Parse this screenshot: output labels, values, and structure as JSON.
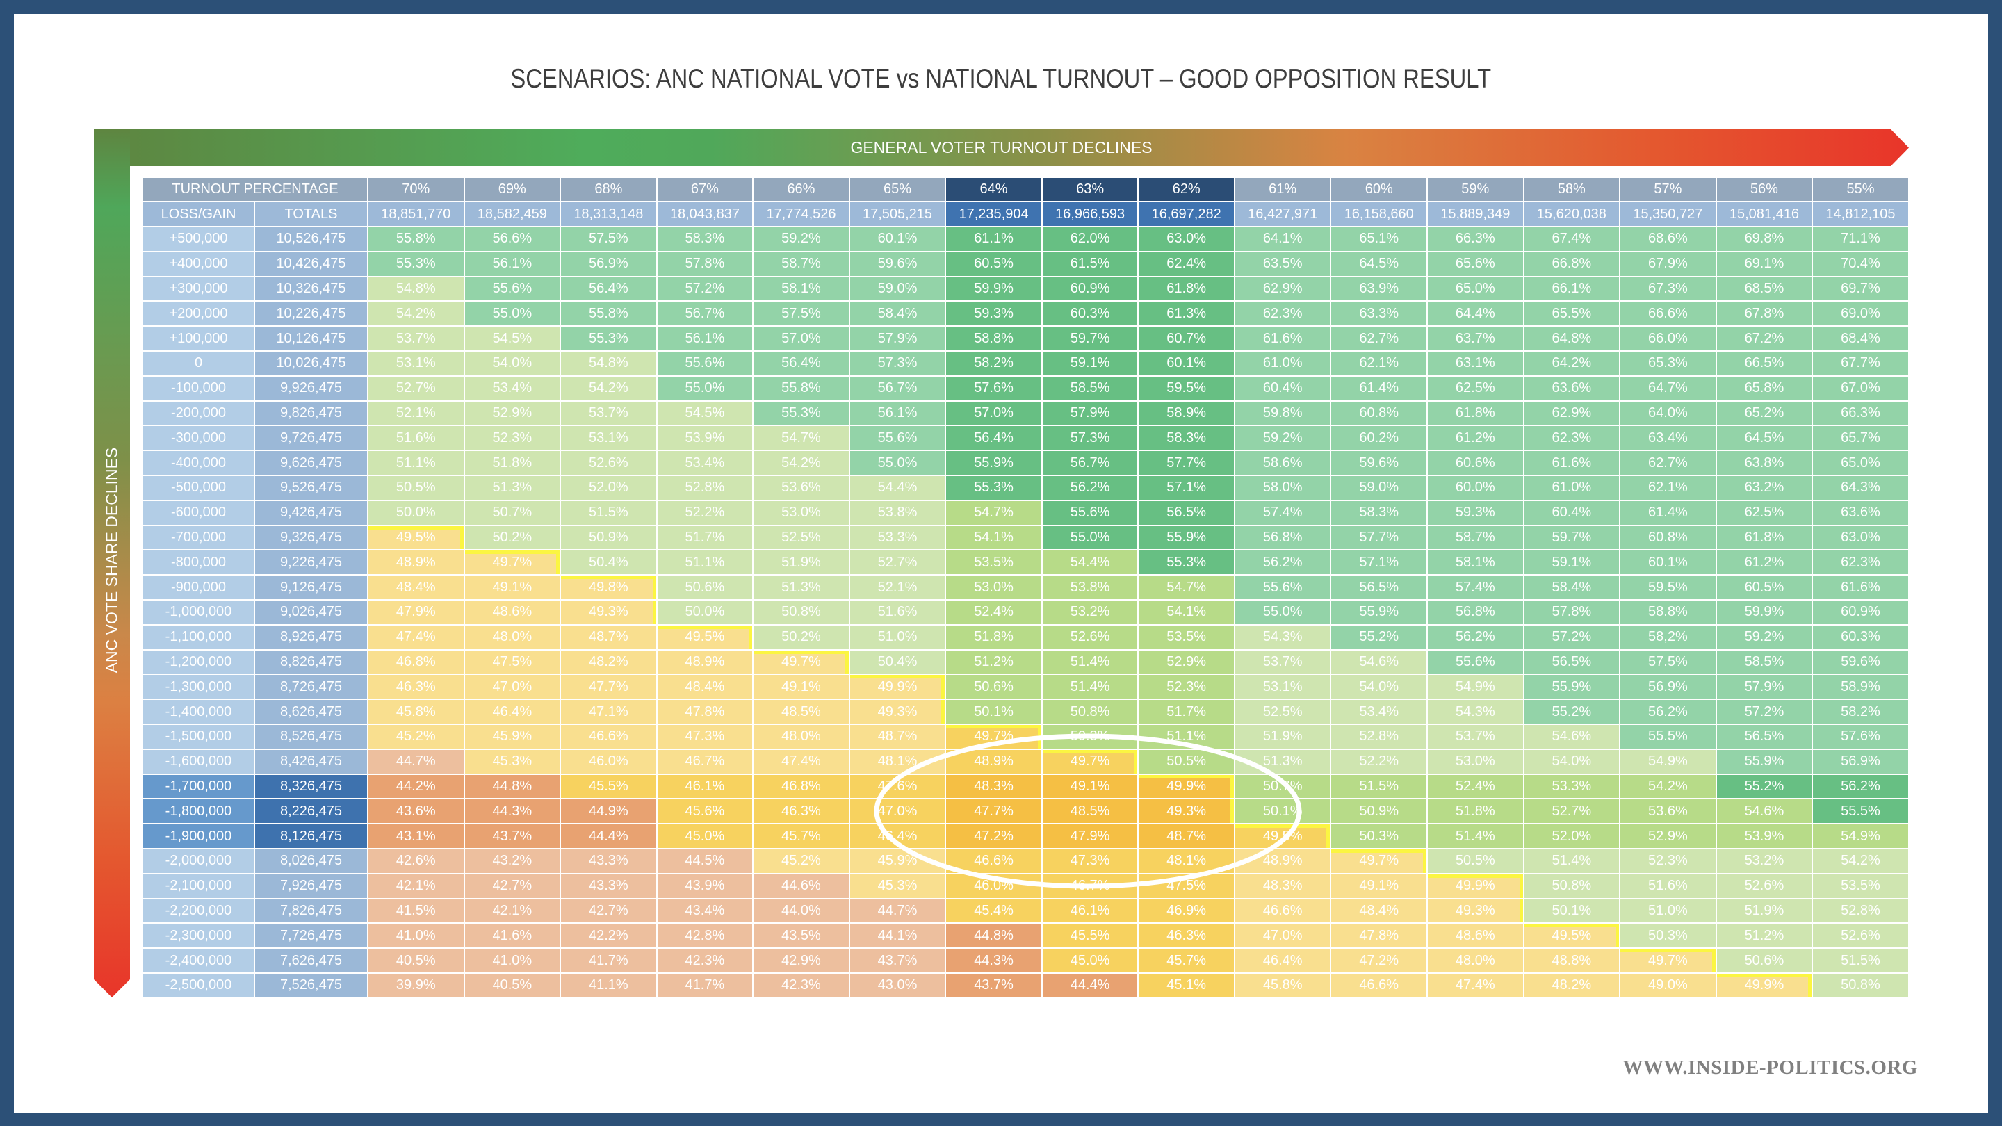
{
  "title": "SCENARIOS: ANC NATIONAL VOTE vs NATIONAL TURNOUT – GOOD OPPOSITION RESULT",
  "top_arrow_label": "GENERAL VOTER TURNOUT DECLINES",
  "side_arrow_label": "ANC VOTE SHARE DECLINES",
  "footer_url": "WWW.INSIDE-POLITICS.ORG",
  "colors": {
    "mint": "#93d3a8",
    "dark_green": "#67bf83",
    "pale_green": "#cfe5b0",
    "yellow_green": "#b7db88",
    "pale_yellow": "#f9df8f",
    "gold": "#f7d25f",
    "amber": "#f5bf44",
    "salmon": "#edbf9e",
    "orange": "#e8a271",
    "majority_line": "#fbf542",
    "ellipse": "#ffffff"
  },
  "chart_data": {
    "type": "table",
    "title": "SCENARIOS: ANC NATIONAL VOTE vs NATIONAL TURNOUT – GOOD OPPOSITION RESULT",
    "xlabel": "GENERAL VOTER TURNOUT DECLINES",
    "ylabel": "ANC VOTE SHARE DECLINES",
    "header_label": "TURNOUT PERCENTAGE",
    "loss_gain_label": "LOSS/GAIN",
    "totals_label": "TOTALS",
    "majority_threshold": 50,
    "highlight_columns": [
      "64%",
      "63%",
      "62%"
    ],
    "highlight_rows": [
      "-1,700,000",
      "-1,800,000",
      "-1,900,000"
    ],
    "circled_region": {
      "columns": [
        "65%",
        "64%",
        "63%",
        "62%",
        "61%"
      ],
      "rows": [
        "-1,600,000",
        "-2,100,000"
      ]
    },
    "turnouts": [
      "70%",
      "69%",
      "68%",
      "67%",
      "66%",
      "65%",
      "64%",
      "63%",
      "62%",
      "61%",
      "60%",
      "59%",
      "58%",
      "57%",
      "56%",
      "55%"
    ],
    "turnout_totals": [
      "18,851,770",
      "18,582,459",
      "18,313,148",
      "18,043,837",
      "17,774,526",
      "17,505,215",
      "17,235,904",
      "16,966,593",
      "16,697,282",
      "16,427,971",
      "16,158,660",
      "15,889,349",
      "15,620,038",
      "15,350,727",
      "15,081,416",
      "14,812,105"
    ],
    "rows": [
      {
        "change": "+500,000",
        "total": "10,526,475",
        "values": [
          "55.8%",
          "56.6%",
          "57.5%",
          "58.3%",
          "59.2%",
          "60.1%",
          "61.1%",
          "62.0%",
          "63.0%",
          "64.1%",
          "65.1%",
          "66.3%",
          "67.4%",
          "68.6%",
          "69.8%",
          "71.1%"
        ]
      },
      {
        "change": "+400,000",
        "total": "10,426,475",
        "values": [
          "55.3%",
          "56.1%",
          "56.9%",
          "57.8%",
          "58.7%",
          "59.6%",
          "60.5%",
          "61.5%",
          "62.4%",
          "63.5%",
          "64.5%",
          "65.6%",
          "66.8%",
          "67.9%",
          "69.1%",
          "70.4%"
        ]
      },
      {
        "change": "+300,000",
        "total": "10,326,475",
        "values": [
          "54.8%",
          "55.6%",
          "56.4%",
          "57.2%",
          "58.1%",
          "59.0%",
          "59.9%",
          "60.9%",
          "61.8%",
          "62.9%",
          "63.9%",
          "65.0%",
          "66.1%",
          "67.3%",
          "68.5%",
          "69.7%"
        ]
      },
      {
        "change": "+200,000",
        "total": "10,226,475",
        "values": [
          "54.2%",
          "55.0%",
          "55.8%",
          "56.7%",
          "57.5%",
          "58.4%",
          "59.3%",
          "60.3%",
          "61.3%",
          "62.3%",
          "63.3%",
          "64.4%",
          "65.5%",
          "66.6%",
          "67.8%",
          "69.0%"
        ]
      },
      {
        "change": "+100,000",
        "total": "10,126,475",
        "values": [
          "53.7%",
          "54.5%",
          "55.3%",
          "56.1%",
          "57.0%",
          "57.9%",
          "58.8%",
          "59.7%",
          "60.7%",
          "61.6%",
          "62.7%",
          "63.7%",
          "64.8%",
          "66.0%",
          "67.2%",
          "68.4%"
        ]
      },
      {
        "change": "0",
        "total": "10,026,475",
        "values": [
          "53.1%",
          "54.0%",
          "54.8%",
          "55.6%",
          "56.4%",
          "57.3%",
          "58.2%",
          "59.1%",
          "60.1%",
          "61.0%",
          "62.1%",
          "63.1%",
          "64.2%",
          "65.3%",
          "66.5%",
          "67.7%"
        ]
      },
      {
        "change": "-100,000",
        "total": "9,926,475",
        "values": [
          "52.7%",
          "53.4%",
          "54.2%",
          "55.0%",
          "55.8%",
          "56.7%",
          "57.6%",
          "58.5%",
          "59.5%",
          "60.4%",
          "61.4%",
          "62.5%",
          "63.6%",
          "64.7%",
          "65.8%",
          "67.0%"
        ]
      },
      {
        "change": "-200,000",
        "total": "9,826,475",
        "values": [
          "52.1%",
          "52.9%",
          "53.7%",
          "54.5%",
          "55.3%",
          "56.1%",
          "57.0%",
          "57.9%",
          "58.9%",
          "59.8%",
          "60.8%",
          "61.8%",
          "62.9%",
          "64.0%",
          "65.2%",
          "66.3%"
        ]
      },
      {
        "change": "-300,000",
        "total": "9,726,475",
        "values": [
          "51.6%",
          "52.3%",
          "53.1%",
          "53.9%",
          "54.7%",
          "55.6%",
          "56.4%",
          "57.3%",
          "58.3%",
          "59.2%",
          "60.2%",
          "61.2%",
          "62.3%",
          "63.4%",
          "64.5%",
          "65.7%"
        ]
      },
      {
        "change": "-400,000",
        "total": "9,626,475",
        "values": [
          "51.1%",
          "51.8%",
          "52.6%",
          "53.4%",
          "54.2%",
          "55.0%",
          "55.9%",
          "56.7%",
          "57.7%",
          "58.6%",
          "59.6%",
          "60.6%",
          "61.6%",
          "62.7%",
          "63.8%",
          "65.0%"
        ]
      },
      {
        "change": "-500,000",
        "total": "9,526,475",
        "values": [
          "50.5%",
          "51.3%",
          "52.0%",
          "52.8%",
          "53.6%",
          "54.4%",
          "55.3%",
          "56.2%",
          "57.1%",
          "58.0%",
          "59.0%",
          "60.0%",
          "61.0%",
          "62.1%",
          "63.2%",
          "64.3%"
        ]
      },
      {
        "change": "-600,000",
        "total": "9,426,475",
        "values": [
          "50.0%",
          "50.7%",
          "51.5%",
          "52.2%",
          "53.0%",
          "53.8%",
          "54.7%",
          "55.6%",
          "56.5%",
          "57.4%",
          "58.3%",
          "59.3%",
          "60.4%",
          "61.4%",
          "62.5%",
          "63.6%"
        ]
      },
      {
        "change": "-700,000",
        "total": "9,326,475",
        "values": [
          "49.5%",
          "50.2%",
          "50.9%",
          "51.7%",
          "52.5%",
          "53.3%",
          "54.1%",
          "55.0%",
          "55.9%",
          "56.8%",
          "57.7%",
          "58.7%",
          "59.7%",
          "60.8%",
          "61.8%",
          "63.0%"
        ]
      },
      {
        "change": "-800,000",
        "total": "9,226,475",
        "values": [
          "48.9%",
          "49.7%",
          "50.4%",
          "51.1%",
          "51.9%",
          "52.7%",
          "53.5%",
          "54.4%",
          "55.3%",
          "56.2%",
          "57.1%",
          "58.1%",
          "59.1%",
          "60.1%",
          "61.2%",
          "62.3%"
        ]
      },
      {
        "change": "-900,000",
        "total": "9,126,475",
        "values": [
          "48.4%",
          "49.1%",
          "49.8%",
          "50.6%",
          "51.3%",
          "52.1%",
          "53.0%",
          "53.8%",
          "54.7%",
          "55.6%",
          "56.5%",
          "57.4%",
          "58.4%",
          "59.5%",
          "60.5%",
          "61.6%"
        ]
      },
      {
        "change": "-1,000,000",
        "total": "9,026,475",
        "values": [
          "47.9%",
          "48.6%",
          "49.3%",
          "50.0%",
          "50.8%",
          "51.6%",
          "52.4%",
          "53.2%",
          "54.1%",
          "55.0%",
          "55.9%",
          "56.8%",
          "57.8%",
          "58.8%",
          "59.9%",
          "60.9%"
        ]
      },
      {
        "change": "-1,100,000",
        "total": "8,926,475",
        "values": [
          "47.4%",
          "48.0%",
          "48.7%",
          "49.5%",
          "50.2%",
          "51.0%",
          "51.8%",
          "52.6%",
          "53.5%",
          "54.3%",
          "55.2%",
          "56.2%",
          "57.2%",
          "58,2%",
          "59.2%",
          "60.3%"
        ]
      },
      {
        "change": "-1,200,000",
        "total": "8,826,475",
        "values": [
          "46.8%",
          "47.5%",
          "48.2%",
          "48.9%",
          "49.7%",
          "50.4%",
          "51.2%",
          "51.4%",
          "52.9%",
          "53.7%",
          "54.6%",
          "55.6%",
          "56.5%",
          "57.5%",
          "58.5%",
          "59.6%"
        ]
      },
      {
        "change": "-1,300,000",
        "total": "8,726,475",
        "values": [
          "46.3%",
          "47.0%",
          "47.7%",
          "48.4%",
          "49.1%",
          "49.9%",
          "50.6%",
          "51.4%",
          "52.3%",
          "53.1%",
          "54.0%",
          "54.9%",
          "55.9%",
          "56.9%",
          "57.9%",
          "58.9%"
        ]
      },
      {
        "change": "-1,400,000",
        "total": "8,626,475",
        "values": [
          "45.8%",
          "46.4%",
          "47.1%",
          "47.8%",
          "48.5%",
          "49.3%",
          "50.1%",
          "50.8%",
          "51.7%",
          "52.5%",
          "53.4%",
          "54.3%",
          "55.2%",
          "56.2%",
          "57.2%",
          "58.2%"
        ]
      },
      {
        "change": "-1,500,000",
        "total": "8,526,475",
        "values": [
          "45.2%",
          "45.9%",
          "46.6%",
          "47.3%",
          "48.0%",
          "48.7%",
          "49.7%",
          "50.3%",
          "51.1%",
          "51.9%",
          "52.8%",
          "53.7%",
          "54.6%",
          "55.5%",
          "56.5%",
          "57.6%"
        ]
      },
      {
        "change": "-1,600,000",
        "total": "8,426,475",
        "values": [
          "44.7%",
          "45.3%",
          "46.0%",
          "46.7%",
          "47.4%",
          "48.1%",
          "48.9%",
          "49.7%",
          "50.5%",
          "51.3%",
          "52.2%",
          "53.0%",
          "54.0%",
          "54.9%",
          "55.9%",
          "56.9%"
        ]
      },
      {
        "change": "-1,700,000",
        "total": "8,326,475",
        "values": [
          "44.2%",
          "44.8%",
          "45.5%",
          "46.1%",
          "46.8%",
          "47.6%",
          "48.3%",
          "49.1%",
          "49.9%",
          "50.7%",
          "51.5%",
          "52.4%",
          "53.3%",
          "54.2%",
          "55.2%",
          "56.2%"
        ]
      },
      {
        "change": "-1,800,000",
        "total": "8,226,475",
        "values": [
          "43.6%",
          "44.3%",
          "44.9%",
          "45.6%",
          "46.3%",
          "47.0%",
          "47.7%",
          "48.5%",
          "49.3%",
          "50.1%",
          "50.9%",
          "51.8%",
          "52.7%",
          "53.6%",
          "54.6%",
          "55.5%"
        ]
      },
      {
        "change": "-1,900,000",
        "total": "8,126,475",
        "values": [
          "43.1%",
          "43.7%",
          "44.4%",
          "45.0%",
          "45.7%",
          "46.4%",
          "47.2%",
          "47.9%",
          "48.7%",
          "49.5%",
          "50.3%",
          "51.4%",
          "52.0%",
          "52.9%",
          "53.9%",
          "54.9%"
        ]
      },
      {
        "change": "-2,000,000",
        "total": "8,026,475",
        "values": [
          "42.6%",
          "43.2%",
          "43.3%",
          "44.5%",
          "45.2%",
          "45.9%",
          "46.6%",
          "47.3%",
          "48.1%",
          "48.9%",
          "49.7%",
          "50.5%",
          "51.4%",
          "52.3%",
          "53.2%",
          "54.2%"
        ]
      },
      {
        "change": "-2,100,000",
        "total": "7,926,475",
        "values": [
          "42.1%",
          "42.7%",
          "43.3%",
          "43.9%",
          "44.6%",
          "45.3%",
          "46.0%",
          "46.7%",
          "47.5%",
          "48.3%",
          "49.1%",
          "49.9%",
          "50.8%",
          "51.6%",
          "52.6%",
          "53.5%"
        ]
      },
      {
        "change": "-2,200,000",
        "total": "7,826,475",
        "values": [
          "41.5%",
          "42.1%",
          "42.7%",
          "43.4%",
          "44.0%",
          "44.7%",
          "45.4%",
          "46.1%",
          "46.9%",
          "46.6%",
          "48.4%",
          "49.3%",
          "50.1%",
          "51.0%",
          "51.9%",
          "52.8%"
        ]
      },
      {
        "change": "-2,300,000",
        "total": "7,726,475",
        "values": [
          "41.0%",
          "41.6%",
          "42.2%",
          "42.8%",
          "43.5%",
          "44.1%",
          "44.8%",
          "45.5%",
          "46.3%",
          "47.0%",
          "47.8%",
          "48.6%",
          "49.5%",
          "50.3%",
          "51.2%",
          "52.6%"
        ]
      },
      {
        "change": "-2,400,000",
        "total": "7,626,475",
        "values": [
          "40.5%",
          "41.0%",
          "41.7%",
          "42.3%",
          "42.9%",
          "43.7%",
          "44.3%",
          "45.0%",
          "45.7%",
          "46.4%",
          "47.2%",
          "48.0%",
          "48.8%",
          "49.7%",
          "50.6%",
          "51.5%"
        ]
      },
      {
        "change": "-2,500,000",
        "total": "7,526,475",
        "values": [
          "39.9%",
          "40.5%",
          "41.1%",
          "41.7%",
          "42.3%",
          "43.0%",
          "43.7%",
          "44.4%",
          "45.1%",
          "45.8%",
          "46.6%",
          "47.4%",
          "48.2%",
          "49.0%",
          "49.9%",
          "50.8%"
        ]
      }
    ]
  }
}
